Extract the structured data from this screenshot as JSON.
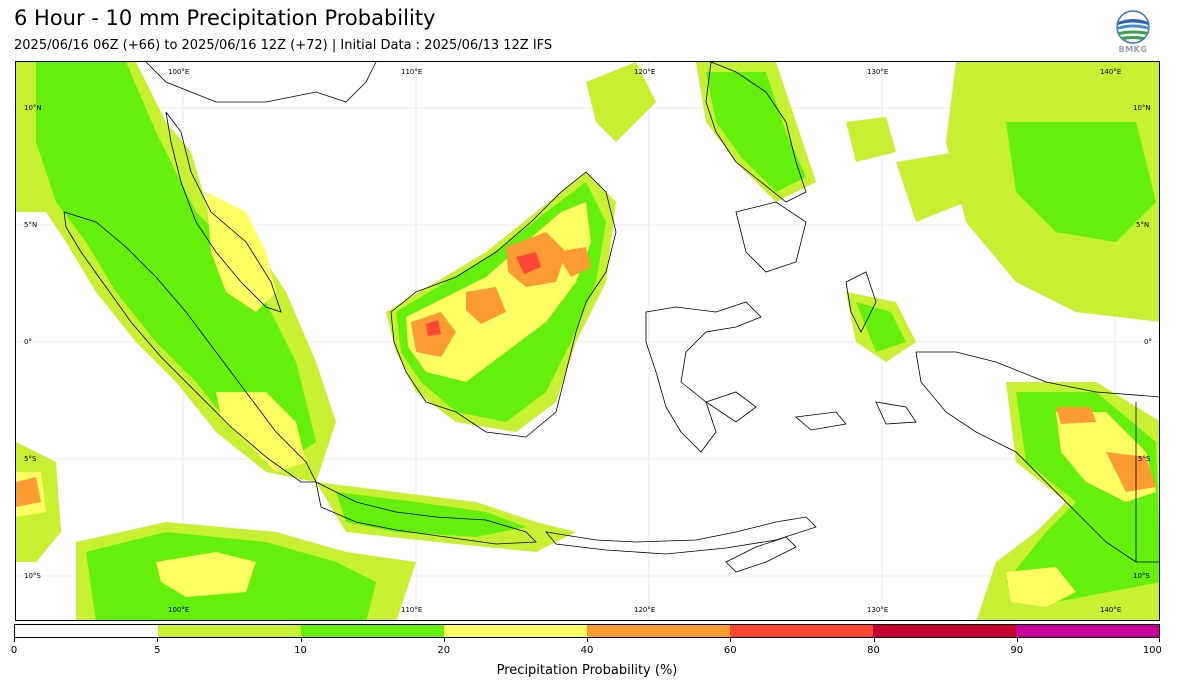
{
  "title": "6 Hour - 10 mm Precipitation Probability",
  "subtitle": "2025/06/16 06Z (+66) to 2025/06/16 12Z (+72) | Initial Data : 2025/06/13 12Z IFS",
  "logo": {
    "text": "BMKG",
    "icon": "bmkg-globe-logo"
  },
  "map": {
    "lon_labels": [
      "100°E",
      "110°E",
      "120°E",
      "130°E",
      "140°E"
    ],
    "lat_labels": [
      "10°N",
      "5°N",
      "0°",
      "5°S",
      "10°S"
    ]
  },
  "colorbar": {
    "title": "Precipitation Probability (%)",
    "tick_labels": [
      "0",
      "5",
      "10",
      "20",
      "40",
      "60",
      "80",
      "90",
      "100"
    ],
    "colors": [
      "#ffffff",
      "#c8f032",
      "#64f00a",
      "#ffff64",
      "#ff9b32",
      "#ff4632",
      "#c80032",
      "#c8009b"
    ]
  }
}
